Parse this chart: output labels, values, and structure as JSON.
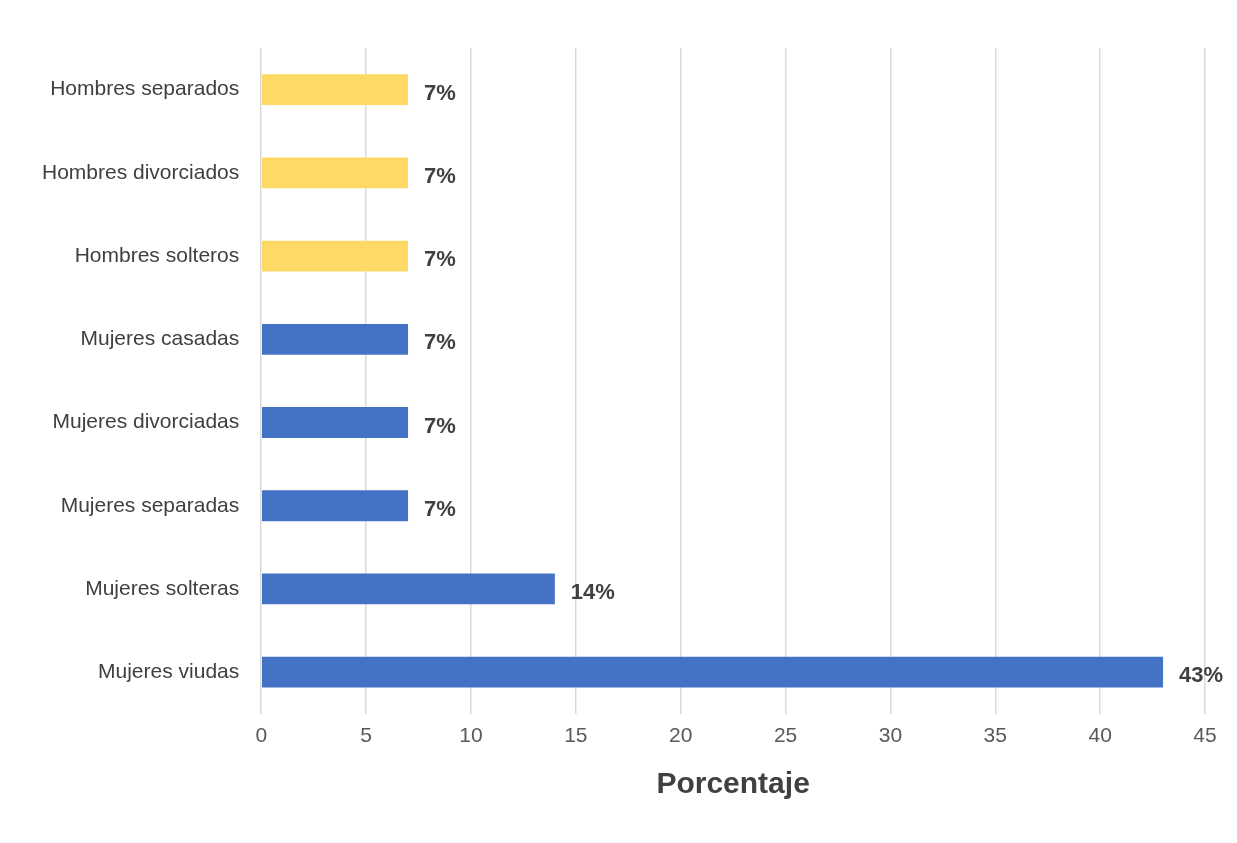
{
  "chart_data": {
    "type": "bar",
    "orientation": "horizontal",
    "xlabel": "Porcentaje",
    "categories": [
      "Hombres separados",
      "Hombres divorciados",
      "Hombres solteros",
      "Mujeres casadas",
      "Mujeres divorciadas",
      "Mujeres separadas",
      "Mujeres solteras",
      "Mujeres viudas"
    ],
    "values": [
      7,
      7,
      7,
      7,
      7,
      7,
      14,
      43
    ],
    "colors": [
      "#ffd966",
      "#ffd966",
      "#ffd966",
      "#4472c4",
      "#4472c4",
      "#4472c4",
      "#4472c4",
      "#4472c4"
    ],
    "value_labels": [
      "7%",
      "7%",
      "7%",
      "7%",
      "7%",
      "7%",
      "14%",
      "43%"
    ],
    "xlim": [
      0,
      45
    ],
    "xticks": [
      0,
      5,
      10,
      15,
      20,
      25,
      30,
      35,
      40,
      45
    ],
    "grid": "x",
    "legend": false
  }
}
